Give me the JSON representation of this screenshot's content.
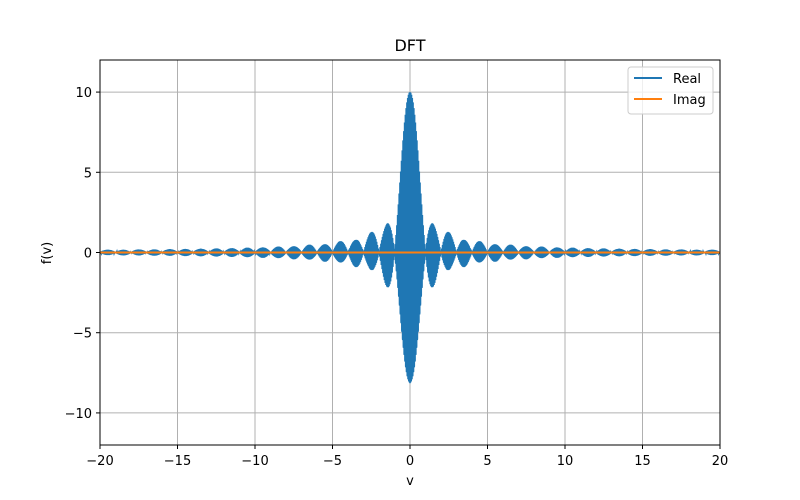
{
  "chart_data": {
    "type": "line",
    "title": "DFT",
    "xlabel": "v",
    "ylabel": "f(v)",
    "xlim": [
      -20,
      20
    ],
    "ylim": [
      -12,
      12
    ],
    "xticks": [
      -20,
      -15,
      -10,
      -5,
      0,
      5,
      10,
      15,
      20
    ],
    "xtick_labels": [
      "−20",
      "−15",
      "−10",
      "−5",
      "0",
      "5",
      "10",
      "15",
      "20"
    ],
    "yticks": [
      -10,
      -5,
      0,
      5,
      10
    ],
    "ytick_labels": [
      "−10",
      "−5",
      "0",
      "5",
      "10"
    ],
    "grid": true,
    "legend_position": "top-right",
    "series": [
      {
        "name": "Real",
        "color": "#1f77b4",
        "description_formula": "10*sinc(v)*cos(40*pi*v)",
        "amplitude": 10,
        "envelope_width": 1,
        "oscillation_cycles_per_unit": 20,
        "x_start": -20,
        "x_end": 20,
        "samples": 4001
      },
      {
        "name": "Imag",
        "color": "#ff7f0e",
        "constant_value": 0,
        "x_start": -20,
        "x_end": 20
      }
    ]
  }
}
